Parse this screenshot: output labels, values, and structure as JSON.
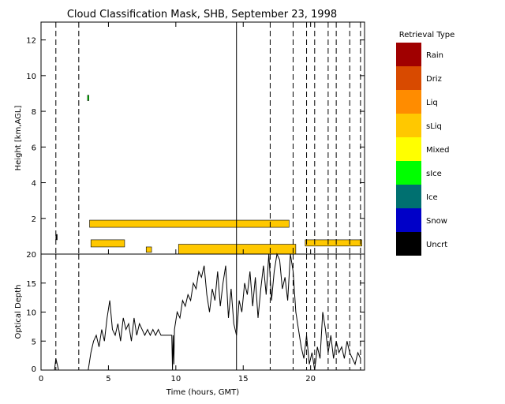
{
  "title": "Cloud Classification Mask, SHB, September 23, 1998",
  "legend": {
    "title": "Retrieval Type",
    "items": [
      {
        "label": "Rain",
        "color": "#a00000"
      },
      {
        "label": "Driz",
        "color": "#d84a00"
      },
      {
        "label": "Liq",
        "color": "#ff8c00"
      },
      {
        "label": "sLiq",
        "color": "#ffc800"
      },
      {
        "label": "Mixed",
        "color": "#ffff00"
      },
      {
        "label": "sIce",
        "color": "#00ff00"
      },
      {
        "label": "Ice",
        "color": "#007070"
      },
      {
        "label": "Snow",
        "color": "#0000c8"
      },
      {
        "label": "Uncrt",
        "color": "#000000"
      }
    ]
  },
  "chart_data": [
    {
      "type": "heatmap",
      "xlabel": "Time (hours, GMT)",
      "ylabel": "Height [km,AGL]",
      "xlim": [
        0,
        24
      ],
      "ylim": [
        0,
        13
      ],
      "xticks": [
        0,
        5,
        10,
        15,
        20
      ],
      "yticks": [
        2,
        4,
        6,
        8,
        10,
        12
      ],
      "vertical_lines": {
        "solid": [
          14.5
        ],
        "dashed": [
          1.1,
          2.8,
          17.0,
          18.7,
          19.7,
          20.3,
          21.3,
          21.9,
          22.9,
          23.7
        ]
      },
      "cloud_layers": [
        {
          "type": "sLiq",
          "x": [
            3.6,
            18.4
          ],
          "y": [
            1.5,
            1.9
          ]
        },
        {
          "type": "sLiq",
          "x": [
            3.7,
            6.2
          ],
          "y": [
            0.4,
            0.8
          ]
        },
        {
          "type": "sLiq",
          "x": [
            7.8,
            8.2
          ],
          "y": [
            0.1,
            0.4
          ]
        },
        {
          "type": "sLiq",
          "x": [
            10.2,
            18.9
          ],
          "y": [
            0.0,
            0.55
          ]
        },
        {
          "type": "sLiq",
          "x": [
            19.6,
            23.8
          ],
          "y": [
            0.45,
            0.8
          ]
        },
        {
          "type": "sIce",
          "x": [
            3.45,
            3.55
          ],
          "y": [
            8.6,
            8.9
          ]
        },
        {
          "type": "Uncrt",
          "x": [
            1.1,
            1.2
          ],
          "y": [
            0.8,
            1.1
          ]
        }
      ]
    },
    {
      "type": "line",
      "xlabel": "Time (hours, GMT)",
      "ylabel": "Optical Depth",
      "xlim": [
        0,
        24
      ],
      "ylim": [
        0,
        20
      ],
      "xticks": [
        0,
        5,
        10,
        15,
        20
      ],
      "yticks": [
        0,
        5,
        10,
        15,
        20
      ],
      "series": [
        {
          "x": [
            1.0,
            1.1,
            1.3,
            1.5,
            3.5,
            3.7,
            3.9,
            4.1,
            4.3,
            4.5,
            4.7,
            4.9,
            5.1,
            5.3,
            5.5,
            5.7,
            5.9,
            6.1,
            6.3,
            6.5,
            6.7,
            6.9,
            7.1,
            7.3,
            7.5,
            7.7,
            7.9,
            8.1,
            8.3,
            8.5,
            8.7,
            8.9,
            9.1,
            9.3,
            9.5,
            9.7,
            9.75,
            9.8,
            9.85,
            9.9,
            10.1,
            10.3,
            10.5,
            10.7,
            10.9,
            11.1,
            11.3,
            11.5,
            11.7,
            11.9,
            12.1,
            12.3,
            12.5,
            12.7,
            12.9,
            13.1,
            13.3,
            13.5,
            13.7,
            13.9,
            14.1,
            14.3,
            14.5,
            14.7,
            14.9,
            15.1,
            15.3,
            15.5,
            15.7,
            15.9,
            16.1,
            16.3,
            16.5,
            16.7,
            16.9,
            17.1,
            17.3,
            17.5,
            17.7,
            17.9,
            18.1,
            18.3,
            18.5,
            18.7,
            18.9,
            19.1,
            19.3,
            19.5,
            19.7,
            19.9,
            20.1,
            20.3,
            20.5,
            20.7,
            20.9,
            21.1,
            21.3,
            21.5,
            21.7,
            21.9,
            22.1,
            22.3,
            22.5,
            22.7,
            22.9,
            23.1,
            23.3,
            23.5,
            23.7
          ],
          "y": [
            0,
            2,
            0,
            0,
            0,
            3,
            5,
            6,
            4,
            7,
            5,
            9,
            12,
            7,
            6,
            8,
            5,
            9,
            7,
            8,
            5,
            9,
            6,
            8,
            7,
            6,
            7,
            6,
            7,
            6,
            7,
            6,
            6,
            6,
            6,
            6,
            0,
            6,
            1,
            7,
            10,
            9,
            12,
            11,
            13,
            12,
            15,
            14,
            17,
            16,
            18,
            13,
            10,
            14,
            12,
            17,
            11,
            15,
            18,
            9,
            14,
            8,
            6,
            12,
            10,
            15,
            13,
            17,
            11,
            16,
            9,
            14,
            18,
            13,
            20,
            12,
            17,
            20,
            19,
            14,
            16,
            12,
            20,
            17,
            10,
            7,
            4,
            2,
            6,
            1,
            3,
            0,
            4,
            2,
            10,
            7,
            3,
            6,
            2,
            5,
            3,
            4,
            2,
            5,
            3,
            2,
            1,
            3,
            2
          ]
        }
      ]
    }
  ]
}
